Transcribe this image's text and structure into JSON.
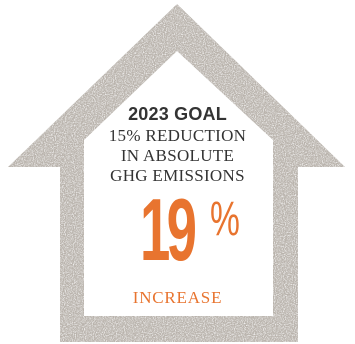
{
  "goal": {
    "title": "2023 GOAL",
    "line1": "15% REDUCTION",
    "line2": "IN ABSOLUTE",
    "line3": "GHG EMISSIONS"
  },
  "result": {
    "number": "19",
    "percent_sign": "%",
    "label": "INCREASE"
  },
  "colors": {
    "house_outline": "#b9b3ac",
    "accent_orange": "#e8742f",
    "text_dark": "#333333"
  },
  "icons": {
    "house": "house-outline-icon"
  }
}
